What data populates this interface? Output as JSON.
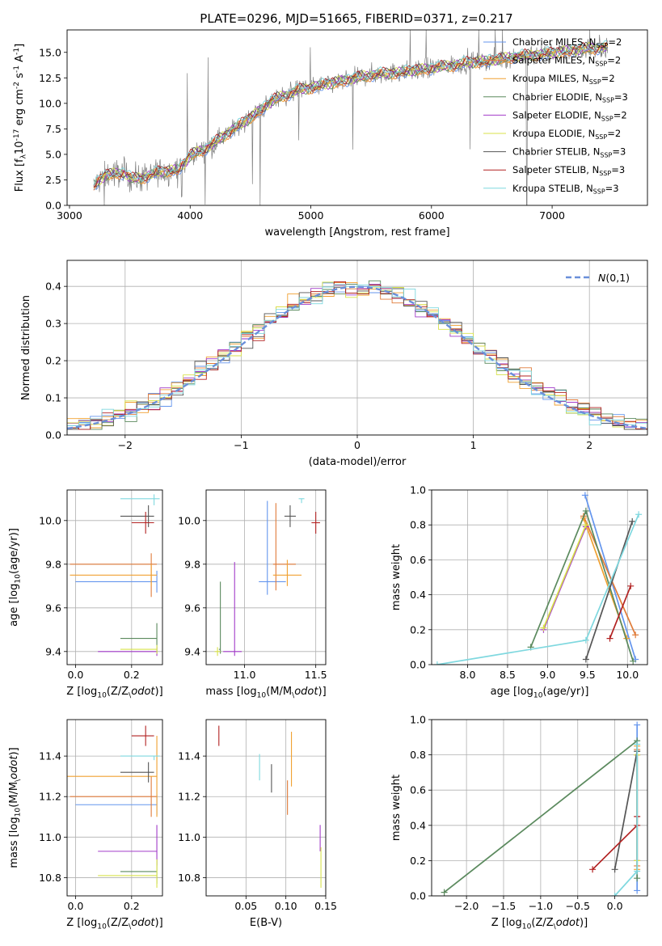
{
  "figure": {
    "title": "PLATE=0296, MJD=51665, FIBERID=0371, z=0.217"
  },
  "chart_data": [
    {
      "type": "line",
      "id": "spectrum",
      "xlabel": "wavelength [Angstrom, rest frame]",
      "ylabel": "Flux [f$_λ$10$^{-17}$ erg cm$^{-2}$ s$^{-1}$ A$^{-1}$]",
      "xlim": [
        2980,
        7790
      ],
      "ylim": [
        0,
        17.2
      ],
      "xticks": [
        3000,
        4000,
        5000,
        6000,
        7000
      ],
      "yticks": [
        0.0,
        2.5,
        5.0,
        7.5,
        10.0,
        12.5,
        15.0
      ],
      "grid": false,
      "legend_position": "upper-right",
      "data_color": "#808080",
      "continuum_anchors": {
        "x": [
          3200,
          3300,
          3450,
          3520,
          3600,
          3750,
          3900,
          3960,
          4000,
          4150,
          4300,
          4500,
          4700,
          4900,
          5100,
          5300,
          5500,
          5700,
          5900,
          6100,
          6300,
          6500,
          6700,
          6900,
          7100,
          7300,
          7460
        ],
        "y": [
          1.9,
          3.0,
          3.2,
          2.6,
          2.7,
          3.3,
          3.5,
          4.2,
          4.9,
          5.7,
          7.0,
          8.6,
          10.4,
          11.3,
          11.8,
          12.3,
          12.8,
          13.0,
          13.3,
          13.6,
          14.0,
          14.2,
          14.6,
          14.8,
          15.1,
          15.4,
          15.5
        ]
      },
      "series": [
        {
          "name": "Chabrier MILES, N$_{SSP}$=2",
          "color": "#6495ED"
        },
        {
          "name": "Salpeter MILES, N$_{SSP}$=2",
          "color": "#E07B39"
        },
        {
          "name": "Kroupa MILES, N$_{SSP}$=2",
          "color": "#F0A030"
        },
        {
          "name": "Chabrier ELODIE, N$_{SSP}$=3",
          "color": "#5B8A5E"
        },
        {
          "name": "Salpeter ELODIE, N$_{SSP}$=2",
          "color": "#A23BC9"
        },
        {
          "name": "Kroupa ELODIE, N$_{SSP}$=2",
          "color": "#D8E24A"
        },
        {
          "name": "Chabrier STELIB, N$_{SSP}$=3",
          "color": "#555555"
        },
        {
          "name": "Salpeter STELIB, N$_{SSP}$=3",
          "color": "#B22222"
        },
        {
          "name": "Kroupa STELIB, N$_{SSP}$=3",
          "color": "#7FD8DF"
        }
      ]
    },
    {
      "type": "histogram",
      "id": "residuals",
      "xlabel": "(data-model)/error",
      "ylabel": "Normed distribution",
      "xlim": [
        -2.5,
        2.5
      ],
      "ylim": [
        0,
        0.47
      ],
      "xticks": [
        -2,
        -1,
        0,
        1,
        2
      ],
      "yticks": [
        0.0,
        0.1,
        0.2,
        0.3,
        0.4
      ],
      "grid": true,
      "legend_position": "upper-right",
      "reference_curve": {
        "name": "$\\mathcal{N}(0,1)$",
        "color": "#6A8FD9",
        "style": "dashed"
      },
      "bin_width": 0.1,
      "bin_start": -2.5
    },
    {
      "type": "errorbar",
      "id": "age-vs-Z",
      "xlabel": "Z [log$_{10}$(Z/Z$_\\odot$)]",
      "ylabel": "age  [log$_{10}$(age/yr)]",
      "xlim": [
        -0.03,
        0.31
      ],
      "ylim": [
        9.34,
        10.14
      ],
      "xticks": [
        0.0,
        0.2
      ],
      "yticks": [
        9.4,
        9.6,
        9.8,
        10.0
      ],
      "grid": true,
      "points": [
        {
          "x": 0.29,
          "y": 9.72,
          "xerr": [
            0.29,
            0.0
          ],
          "yerr": [
            0.05,
            0.05
          ],
          "series": 0
        },
        {
          "x": 0.27,
          "y": 9.8,
          "xerr": [
            0.29,
            0.02
          ],
          "yerr": [
            0.15,
            0.05
          ],
          "series": 1
        },
        {
          "x": 0.27,
          "y": 9.75,
          "xerr": [
            0.29,
            0.02
          ],
          "yerr": [
            0.05,
            0.05
          ],
          "series": 2
        },
        {
          "x": 0.29,
          "y": 9.46,
          "xerr": [
            0.13,
            0.0
          ],
          "yerr": [
            0.07,
            0.07
          ],
          "series": 3
        },
        {
          "x": 0.29,
          "y": 9.4,
          "xerr": [
            0.21,
            0.0
          ],
          "yerr": [
            0.02,
            0.02
          ],
          "series": 4
        },
        {
          "x": 0.29,
          "y": 9.41,
          "xerr": [
            0.13,
            0.0
          ],
          "yerr": [
            0.02,
            0.02
          ],
          "series": 5
        },
        {
          "x": 0.26,
          "y": 10.02,
          "xerr": [
            0.1,
            0.02
          ],
          "yerr": [
            0.05,
            0.05
          ],
          "series": 6
        },
        {
          "x": 0.25,
          "y": 9.99,
          "xerr": [
            0.05,
            0.03
          ],
          "yerr": [
            0.05,
            0.05
          ],
          "series": 7
        },
        {
          "x": 0.28,
          "y": 10.1,
          "xerr": [
            0.12,
            0.02
          ],
          "yerr": [
            0.03,
            0.02
          ],
          "series": 8
        }
      ]
    },
    {
      "type": "errorbar",
      "id": "age-vs-mass",
      "xlabel": "mass [log$_{10}$(M/M$_\\odot$)]",
      "ylabel": "",
      "xlim": [
        10.73,
        11.57
      ],
      "ylim": [
        9.34,
        10.14
      ],
      "xticks": [
        11.0,
        11.5
      ],
      "yticks": [
        9.4,
        9.6,
        9.8,
        10.0
      ],
      "grid": true,
      "points": [
        {
          "x": 11.16,
          "y": 9.72,
          "xerr": [
            0.06,
            0.13
          ],
          "yerr": [
            0.06,
            0.37
          ],
          "series": 0
        },
        {
          "x": 11.22,
          "y": 9.8,
          "xerr": [
            0.02,
            0.14
          ],
          "yerr": [
            0.12,
            0.28
          ],
          "series": 1
        },
        {
          "x": 11.3,
          "y": 9.75,
          "xerr": [
            0.1,
            0.1
          ],
          "yerr": [
            0.05,
            0.07
          ],
          "series": 2
        },
        {
          "x": 10.83,
          "y": 9.41,
          "xerr": [
            0.01,
            0.0
          ],
          "yerr": [
            0.02,
            0.31
          ],
          "series": 3
        },
        {
          "x": 10.93,
          "y": 9.4,
          "xerr": [
            0.08,
            0.05
          ],
          "yerr": [
            0.02,
            0.41
          ],
          "series": 4
        },
        {
          "x": 10.81,
          "y": 9.4,
          "xerr": [
            0.02,
            0.02
          ],
          "yerr": [
            0.02,
            0.02
          ],
          "series": 5
        },
        {
          "x": 11.32,
          "y": 10.02,
          "xerr": [
            0.04,
            0.04
          ],
          "yerr": [
            0.05,
            0.05
          ],
          "series": 6
        },
        {
          "x": 11.5,
          "y": 9.99,
          "xerr": [
            0.03,
            0.03
          ],
          "yerr": [
            0.05,
            0.05
          ],
          "series": 7
        },
        {
          "x": 11.4,
          "y": 10.1,
          "xerr": [
            0.02,
            0.02
          ],
          "yerr": [
            0.02,
            0.0
          ],
          "series": 8
        }
      ]
    },
    {
      "type": "line",
      "id": "massweight-vs-age",
      "xlabel": "age  [log$_{10}$(age/yr)]",
      "ylabel": "mass weight",
      "xlim": [
        7.55,
        10.25
      ],
      "ylim": [
        0,
        1.0
      ],
      "xticks": [
        8.0,
        8.5,
        9.0,
        9.5,
        10.0
      ],
      "yticks": [
        0.0,
        0.2,
        0.4,
        0.6,
        0.8,
        1.0
      ],
      "grid": true,
      "series": [
        {
          "series": 0,
          "x": [
            9.47,
            10.1
          ],
          "y": [
            0.97,
            0.03
          ]
        },
        {
          "series": 1,
          "x": [
            9.45,
            10.1
          ],
          "y": [
            0.85,
            0.17
          ]
        },
        {
          "series": 2,
          "x": [
            9.45,
            9.99
          ],
          "y": [
            0.84,
            0.15
          ]
        },
        {
          "series": 3,
          "x": [
            8.79,
            9.48,
            10.07
          ],
          "y": [
            0.1,
            0.88,
            0.02
          ]
        },
        {
          "series": 4,
          "x": [
            8.95,
            9.48
          ],
          "y": [
            0.2,
            0.79
          ]
        },
        {
          "series": 5,
          "x": [
            8.95,
            9.48
          ],
          "y": [
            0.21,
            0.8
          ]
        },
        {
          "series": 6,
          "x": [
            9.48,
            10.06
          ],
          "y": [
            0.03,
            0.82
          ]
        },
        {
          "series": 7,
          "x": [
            9.78,
            10.04
          ],
          "y": [
            0.15,
            0.45
          ]
        },
        {
          "series": 8,
          "x": [
            7.62,
            9.48,
            10.14
          ],
          "y": [
            0.0,
            0.14,
            0.86
          ]
        }
      ]
    },
    {
      "type": "errorbar",
      "id": "mass-vs-Z",
      "xlabel": "Z [log$_{10}$(Z/Z$_\\odot$)]",
      "ylabel": "mass [log$_{10}$(M/M$_\\odot$)]",
      "xlim": [
        -0.03,
        0.31
      ],
      "ylim": [
        10.71,
        11.58
      ],
      "xticks": [
        0.0,
        0.2
      ],
      "yticks": [
        10.8,
        11.0,
        11.2,
        11.4
      ],
      "grid": true,
      "points": [
        {
          "x": 0.29,
          "y": 11.16,
          "xerr": [
            0.29,
            0.0
          ],
          "yerr": [
            0.05,
            0.05
          ],
          "series": 0
        },
        {
          "x": 0.27,
          "y": 11.2,
          "xerr": [
            0.29,
            0.02
          ],
          "yerr": [
            0.1,
            0.1
          ],
          "series": 1
        },
        {
          "x": 0.29,
          "y": 11.3,
          "xerr": [
            0.32,
            0.0
          ],
          "yerr": [
            0.2,
            0.2
          ],
          "series": 2
        },
        {
          "x": 0.29,
          "y": 10.83,
          "xerr": [
            0.13,
            0.0
          ],
          "yerr": [
            0.06,
            0.06
          ],
          "series": 3
        },
        {
          "x": 0.29,
          "y": 10.93,
          "xerr": [
            0.21,
            0.0
          ],
          "yerr": [
            0.07,
            0.13
          ],
          "series": 4
        },
        {
          "x": 0.29,
          "y": 10.81,
          "xerr": [
            0.21,
            0.0
          ],
          "yerr": [
            0.06,
            0.08
          ],
          "series": 5
        },
        {
          "x": 0.26,
          "y": 11.32,
          "xerr": [
            0.1,
            0.02
          ],
          "yerr": [
            0.05,
            0.05
          ],
          "series": 6
        },
        {
          "x": 0.25,
          "y": 11.5,
          "xerr": [
            0.05,
            0.03
          ],
          "yerr": [
            0.05,
            0.05
          ],
          "series": 7
        },
        {
          "x": 0.28,
          "y": 11.4,
          "xerr": [
            0.12,
            0.02
          ],
          "yerr": [
            0.02,
            0.0
          ],
          "series": 8
        }
      ]
    },
    {
      "type": "errorbar",
      "id": "mass-vs-EBV",
      "xlabel": "E(B-V)",
      "ylabel": "",
      "xlim": [
        0.0,
        0.15
      ],
      "ylim": [
        10.71,
        11.58
      ],
      "xticks": [
        0.05,
        0.1,
        0.15
      ],
      "yticks": [
        10.8,
        11.0,
        11.2,
        11.4
      ],
      "grid": true,
      "points": [
        {
          "x": 0.102,
          "y": 11.18,
          "xerr": [
            0,
            0
          ],
          "yerr": [
            0.07,
            0.1
          ],
          "series": 1
        },
        {
          "x": 0.107,
          "y": 11.4,
          "xerr": [
            0,
            0
          ],
          "yerr": [
            0.15,
            0.12
          ],
          "series": 2
        },
        {
          "x": 0.143,
          "y": 10.99,
          "xerr": [
            0,
            0
          ],
          "yerr": [
            0.06,
            0.07
          ],
          "series": 4
        },
        {
          "x": 0.144,
          "y": 10.85,
          "xerr": [
            0,
            0
          ],
          "yerr": [
            0.1,
            0.1
          ],
          "series": 5
        },
        {
          "x": 0.082,
          "y": 11.29,
          "xerr": [
            0,
            0
          ],
          "yerr": [
            0.07,
            0.07
          ],
          "series": 6
        },
        {
          "x": 0.016,
          "y": 11.5,
          "xerr": [
            0,
            0
          ],
          "yerr": [
            0.05,
            0.05
          ],
          "series": 7
        },
        {
          "x": 0.067,
          "y": 11.34,
          "xerr": [
            0,
            0
          ],
          "yerr": [
            0.06,
            0.07
          ],
          "series": 8
        }
      ]
    },
    {
      "type": "line",
      "id": "massweight-vs-Z",
      "xlabel": "Z [log$_{10}$(Z/Z$_\\odot$)]",
      "ylabel": "mass weight",
      "xlim": [
        -2.47,
        0.44
      ],
      "ylim": [
        0,
        1.0
      ],
      "xticks": [
        -2.0,
        -1.5,
        -1.0,
        -0.5,
        0.0
      ],
      "yticks": [
        0.0,
        0.2,
        0.4,
        0.6,
        0.8,
        1.0
      ],
      "grid": true,
      "series": [
        {
          "series": 0,
          "x": [
            0.3,
            0.3
          ],
          "y": [
            0.03,
            0.97
          ]
        },
        {
          "series": 1,
          "x": [
            0.3,
            0.3
          ],
          "y": [
            0.17,
            0.83
          ]
        },
        {
          "series": 2,
          "x": [
            0.3,
            0.3
          ],
          "y": [
            0.15,
            0.85
          ]
        },
        {
          "series": 3,
          "x": [
            -2.3,
            0.3,
            0.3
          ],
          "y": [
            0.02,
            0.88,
            0.1
          ]
        },
        {
          "series": 4,
          "x": [
            0.3,
            0.3
          ],
          "y": [
            0.2,
            0.8
          ]
        },
        {
          "series": 5,
          "x": [
            0.3,
            0.3
          ],
          "y": [
            0.2,
            0.8
          ]
        },
        {
          "series": 6,
          "x": [
            0.0,
            0.3
          ],
          "y": [
            0.15,
            0.82
          ]
        },
        {
          "series": 7,
          "x": [
            -0.3,
            0.3,
            0.3
          ],
          "y": [
            0.15,
            0.4,
            0.45
          ]
        },
        {
          "series": 8,
          "x": [
            0.0,
            0.3,
            0.3
          ],
          "y": [
            0.0,
            0.14,
            0.86
          ]
        }
      ]
    }
  ]
}
